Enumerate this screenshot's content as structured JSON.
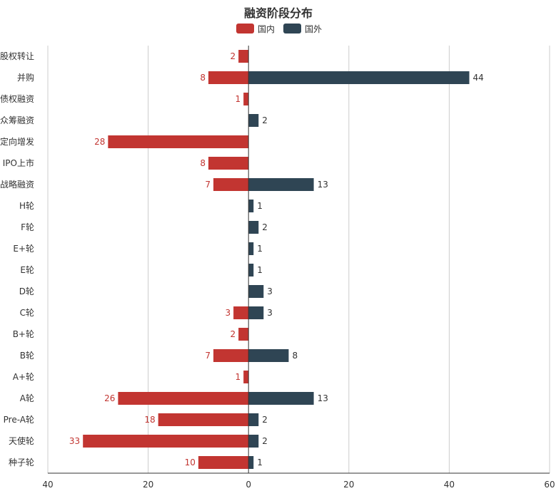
{
  "chart_data": {
    "type": "bar",
    "orientation": "horizontal-diverging",
    "title": "融资阶段分布",
    "categories": [
      "股权转让",
      "并购",
      "债权融资",
      "众筹融资",
      "定向增发",
      "IPO上市",
      "战略融资",
      "H轮",
      "F轮",
      "E+轮",
      "E轮",
      "D轮",
      "C轮",
      "B+轮",
      "B轮",
      "A+轮",
      "A轮",
      "Pre-A轮",
      "天使轮",
      "种子轮"
    ],
    "series": [
      {
        "name": "国内",
        "color": "#c23531",
        "direction": "left",
        "values": [
          2,
          8,
          1,
          null,
          28,
          8,
          7,
          null,
          null,
          null,
          null,
          null,
          3,
          2,
          7,
          1,
          26,
          18,
          33,
          10
        ]
      },
      {
        "name": "国外",
        "color": "#2f4554",
        "direction": "right",
        "values": [
          null,
          44,
          null,
          2,
          null,
          null,
          13,
          1,
          2,
          1,
          1,
          3,
          3,
          null,
          8,
          null,
          13,
          2,
          2,
          1
        ]
      }
    ],
    "xlim": [
      -40,
      60
    ],
    "tick_values": [
      -40,
      -20,
      0,
      20,
      40,
      60
    ],
    "tick_labels": [
      "40",
      "20",
      "0",
      "20",
      "40",
      "60"
    ],
    "legend_position": "top-center",
    "grid": "vertical"
  }
}
